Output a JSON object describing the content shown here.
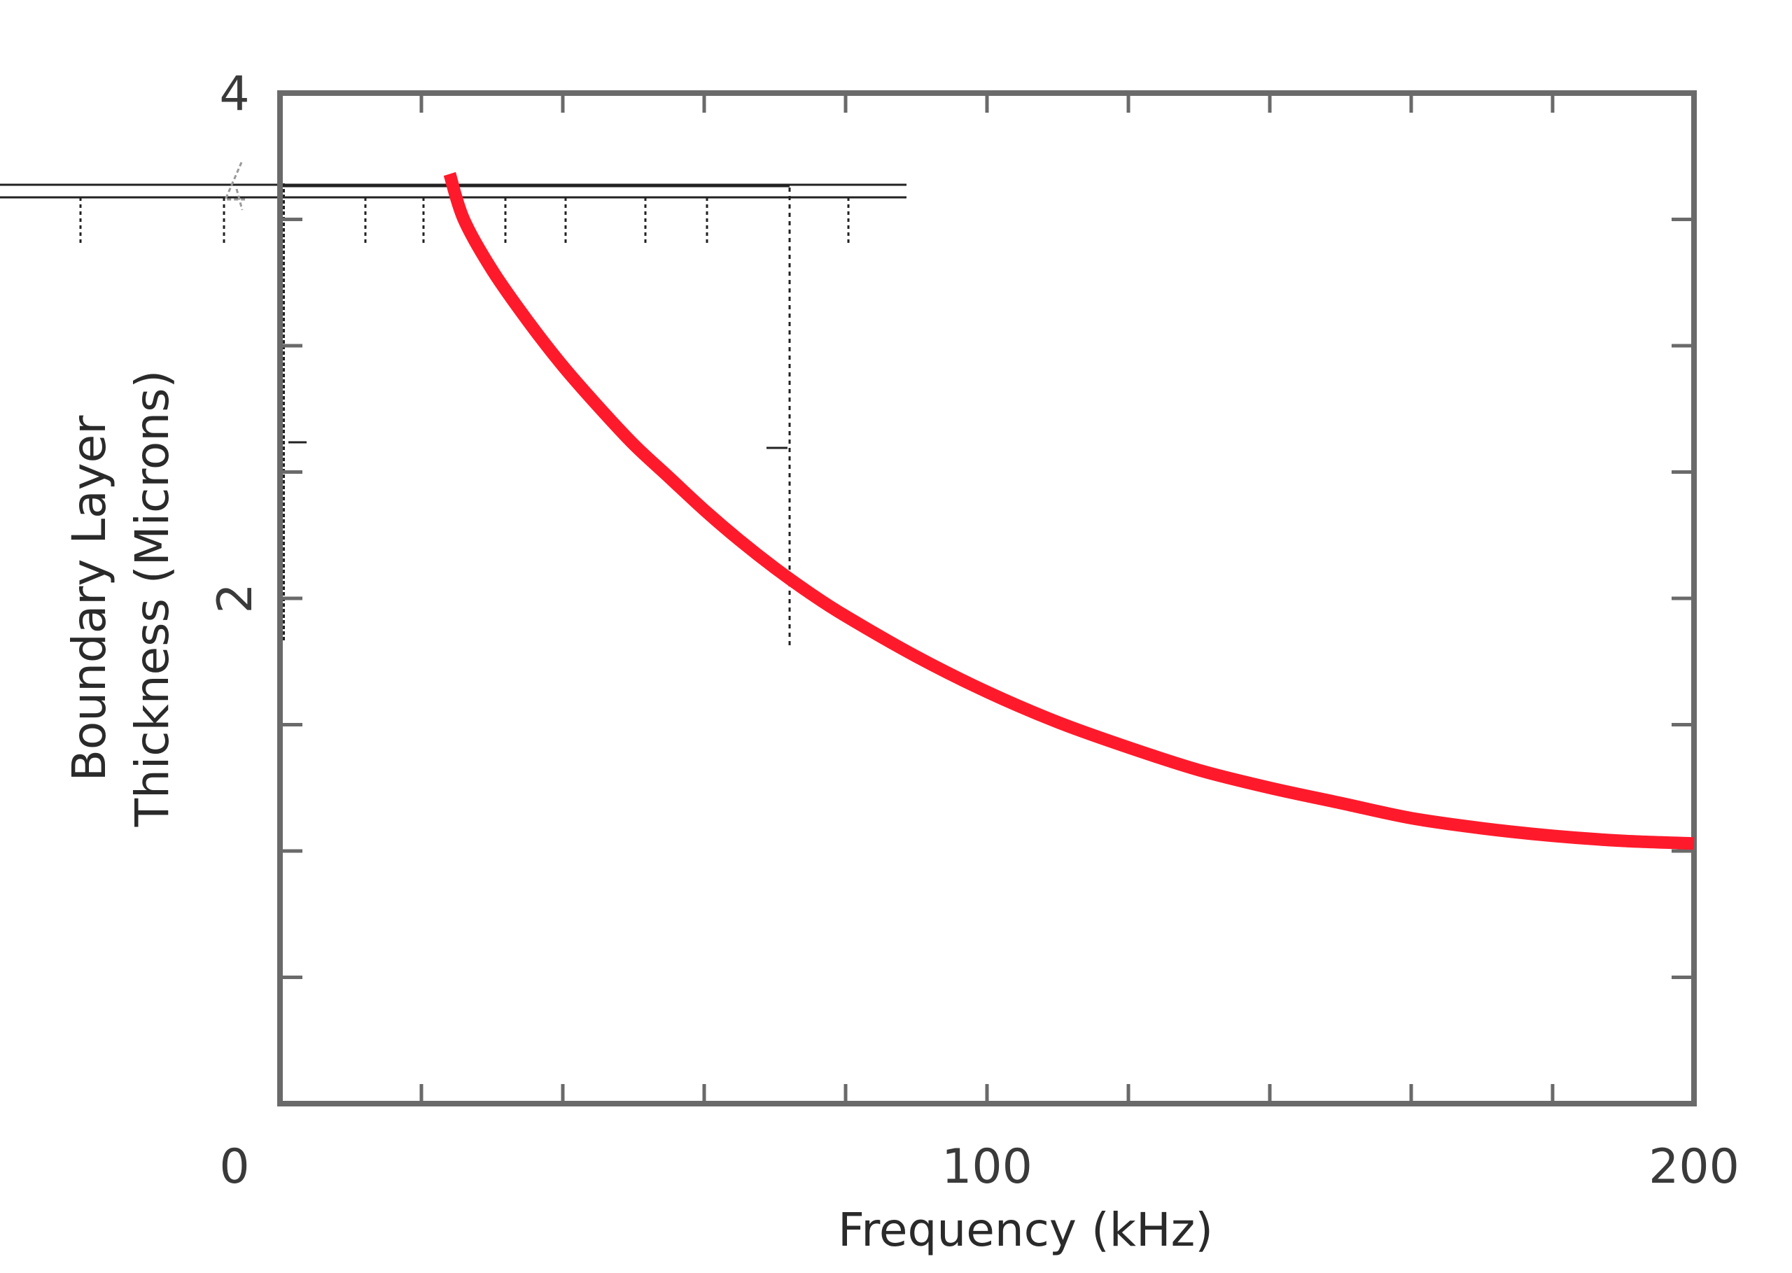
{
  "chart_data": {
    "type": "line",
    "title": "",
    "xlabel": "Frequency (kHz)",
    "ylabel_lines": [
      "Boundary Layer",
      "Thickness (Microns)"
    ],
    "xlim": [
      0,
      200
    ],
    "ylim": [
      0,
      4
    ],
    "x_tick_labels": [
      {
        "value": 0,
        "label": "0"
      },
      {
        "value": 100,
        "label": "100"
      },
      {
        "value": 200,
        "label": "200"
      }
    ],
    "y_tick_labels": [
      {
        "value": 2,
        "label": "2"
      },
      {
        "value": 4,
        "label": "4"
      }
    ],
    "x_minor_step": 20,
    "y_minor_step": 0.5,
    "grid": false,
    "legend": "none",
    "series": [
      {
        "color": "#ff1a2b",
        "x": [
          24,
          26,
          30,
          35,
          40,
          45,
          50,
          55,
          60,
          65,
          70,
          75,
          80,
          90,
          100,
          110,
          120,
          130,
          140,
          150,
          160,
          170,
          180,
          190,
          200
        ],
        "y": [
          3.68,
          3.5,
          3.3,
          3.1,
          2.92,
          2.76,
          2.61,
          2.48,
          2.35,
          2.23,
          2.12,
          2.02,
          1.93,
          1.77,
          1.63,
          1.51,
          1.41,
          1.32,
          1.25,
          1.19,
          1.13,
          1.09,
          1.06,
          1.04,
          1.03
        ]
      }
    ],
    "artifact_color": "#222222"
  }
}
